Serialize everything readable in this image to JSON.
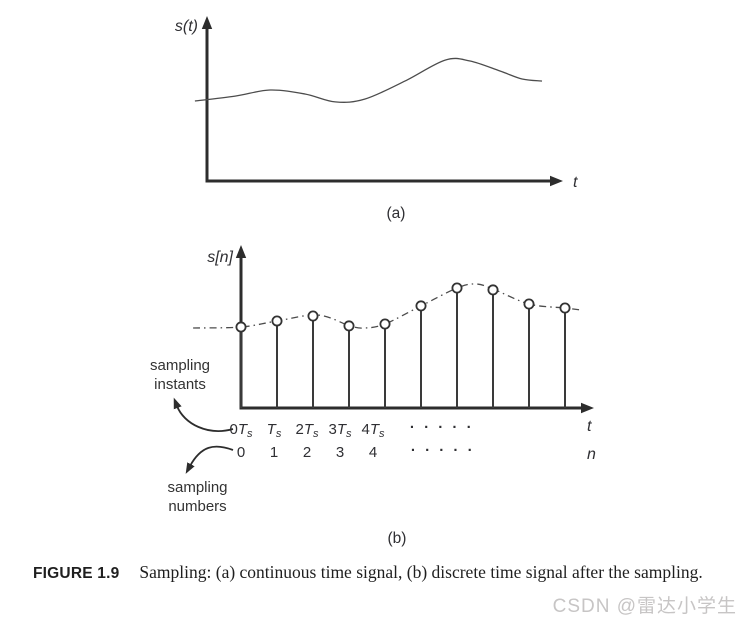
{
  "figure": {
    "sublabel_a": "(a)",
    "sublabel_b": "(b)",
    "caption_tag": "FIGURE 1.9",
    "caption_text": "Sampling: (a) continuous time signal, (b) discrete time signal after the sampling."
  },
  "annotations": {
    "sampling_instants": "sampling\ninstants",
    "sampling_numbers": "sampling\nnumbers"
  },
  "watermark": "CSDN @雷达小学生",
  "colors": {
    "ink": "#2d2d2d",
    "text": "#2f2f33",
    "watermark": "#c7c5c5",
    "background": "#ffffff"
  },
  "chart_data": [
    {
      "id": "continuous",
      "type": "line",
      "title": "continuous time signal",
      "ylabel": "s(t)",
      "xlabel": "t",
      "axes_numeric": false,
      "grid": false,
      "curve": [
        [
          -0.034,
          0.491
        ],
        [
          0.079,
          0.521
        ],
        [
          0.177,
          0.558
        ],
        [
          0.275,
          0.534
        ],
        [
          0.36,
          0.485
        ],
        [
          0.444,
          0.503
        ],
        [
          0.556,
          0.613
        ],
        [
          0.669,
          0.742
        ],
        [
          0.739,
          0.736
        ],
        [
          0.823,
          0.675
        ],
        [
          0.885,
          0.626
        ],
        [
          0.941,
          0.613
        ]
      ]
    },
    {
      "id": "discrete",
      "type": "stem",
      "title": "discrete time signal after the sampling",
      "ylabel": "s[n]",
      "xlabel_t": "t",
      "xlabel_n": "n",
      "grid": false,
      "n": [
        0,
        1,
        2,
        3,
        4,
        5,
        6,
        7,
        8,
        9
      ],
      "amplitudes": [
        0.506,
        0.544,
        0.575,
        0.513,
        0.525,
        0.638,
        0.75,
        0.738,
        0.65,
        0.625
      ],
      "t_tick_labels": [
        {
          "pre": "0",
          "var": "T",
          "sub": "s"
        },
        {
          "pre": "",
          "var": "T",
          "sub": "s"
        },
        {
          "pre": "2",
          "var": "T",
          "sub": "s"
        },
        {
          "pre": "3",
          "var": "T",
          "sub": "s"
        },
        {
          "pre": "4",
          "var": "T",
          "sub": "s"
        }
      ],
      "n_tick_labels": [
        "0",
        "1",
        "2",
        "3",
        "4"
      ],
      "ellipsis": "· · · · ·",
      "interp_curve": [
        [
          -1.33,
          0.5
        ],
        [
          0,
          0.506
        ],
        [
          1,
          0.544
        ],
        [
          2.14,
          0.581
        ],
        [
          3.03,
          0.513
        ],
        [
          3.44,
          0.5
        ],
        [
          4,
          0.525
        ],
        [
          5,
          0.638
        ],
        [
          6,
          0.75
        ],
        [
          6.53,
          0.775
        ],
        [
          7,
          0.744
        ],
        [
          8,
          0.65
        ],
        [
          9,
          0.625
        ],
        [
          9.42,
          0.613
        ]
      ]
    }
  ]
}
